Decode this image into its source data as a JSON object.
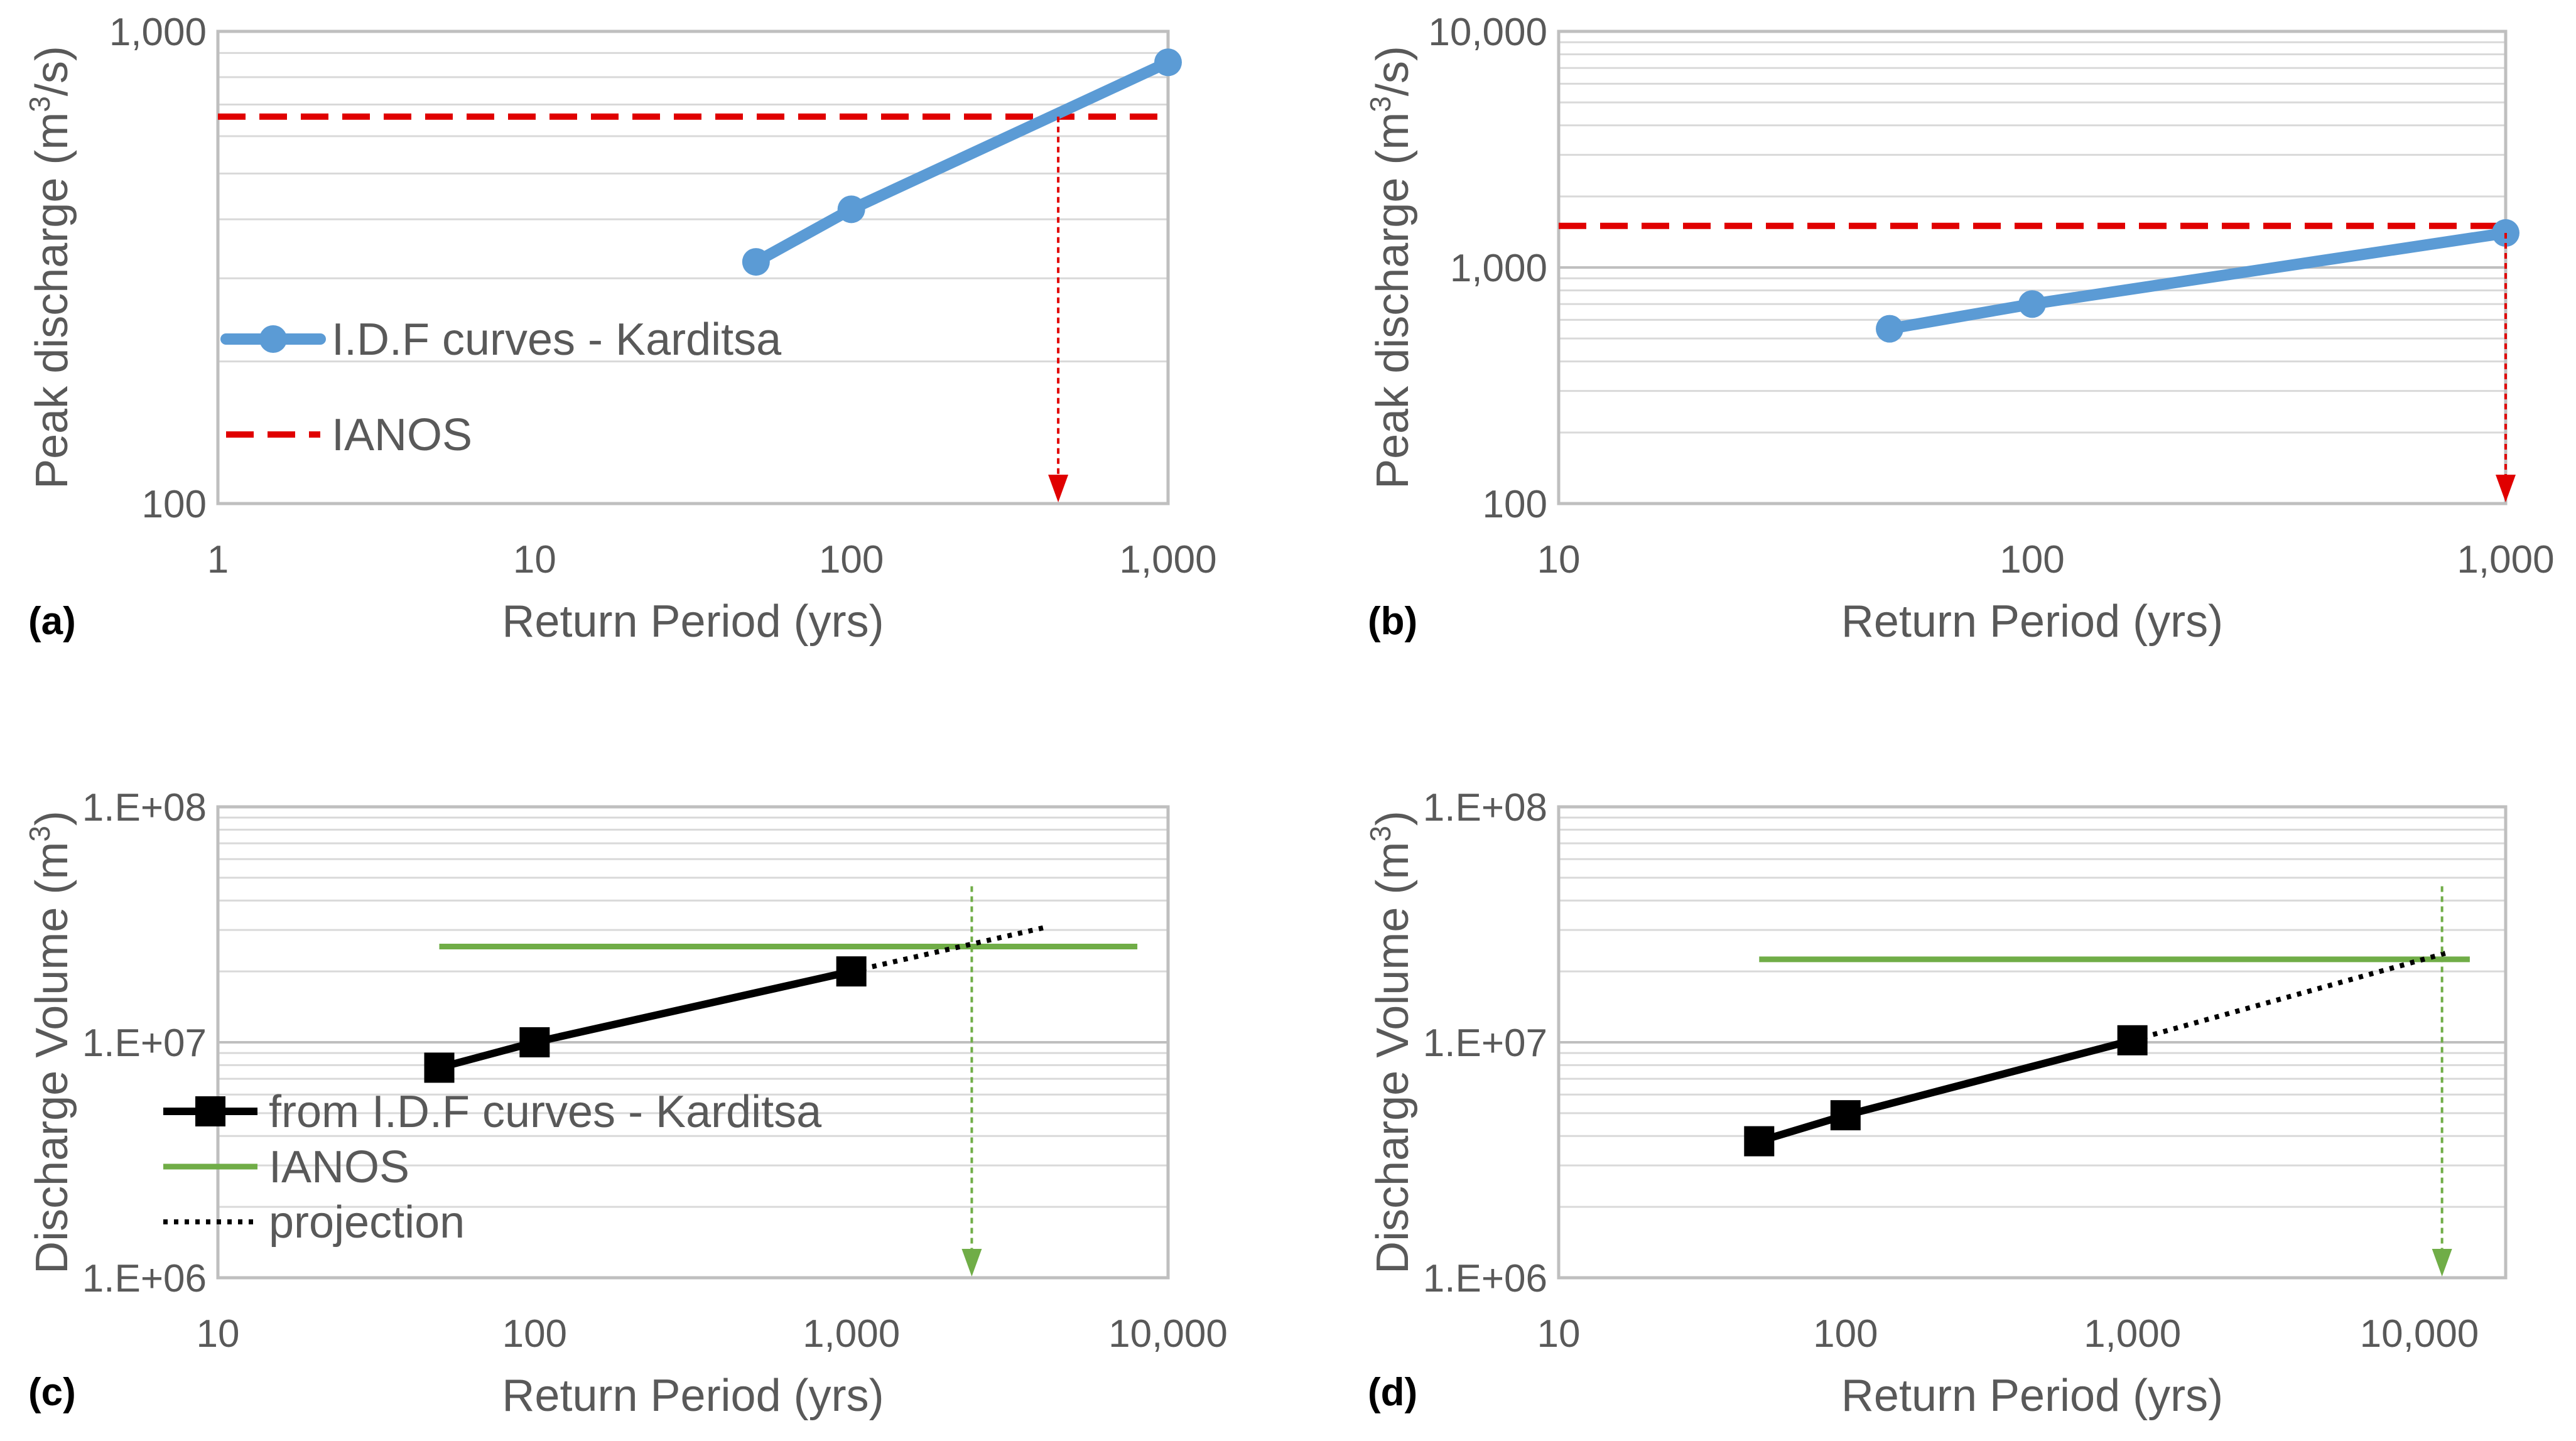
{
  "colors": {
    "idf_blue": "#5b9bd5",
    "ianos_red": "#e00000",
    "ianos_green": "#70ad47",
    "black": "#000000",
    "grid": "#d9d9d9",
    "axis": "#bfbfbf",
    "text": "#595959"
  },
  "chart_data": [
    {
      "id": "a",
      "type": "line",
      "panel_label": "(a)",
      "xlabel": "Return Period (yrs)",
      "ylabel_main": "Peak discharge (m",
      "ylabel_sup": "3",
      "ylabel_tail": "/s)",
      "xscale": "log",
      "yscale": "log",
      "xlim": [
        1,
        1000
      ],
      "ylim": [
        100,
        1000
      ],
      "x_ticks": [
        {
          "value": 1,
          "label": "1"
        },
        {
          "value": 10,
          "label": "10"
        },
        {
          "value": 100,
          "label": "100"
        },
        {
          "value": 1000,
          "label": "1,000"
        }
      ],
      "y_ticks": [
        {
          "value": 100,
          "label": "100"
        },
        {
          "value": 1000,
          "label": "1,000"
        }
      ],
      "legend_position": "left-middle",
      "series": [
        {
          "name": "I.D.F curves - Karditsa",
          "style": "line-marker-circle",
          "color": "#5b9bd5",
          "x": [
            50,
            100,
            1000
          ],
          "y": [
            325,
            420,
            860
          ]
        },
        {
          "name": "IANOS",
          "style": "dashed",
          "color": "#e00000",
          "x": [
            1,
            1000
          ],
          "y": [
            660,
            660
          ]
        }
      ],
      "annotation_arrow": {
        "x": 450,
        "y_from": 660,
        "y_to": 100,
        "color": "#e00000"
      }
    },
    {
      "id": "b",
      "type": "line",
      "panel_label": "(b)",
      "xlabel": "Return Period (yrs)",
      "ylabel_main": "Peak discharge (m",
      "ylabel_sup": "3",
      "ylabel_tail": "/s)",
      "xscale": "log",
      "yscale": "log",
      "xlim": [
        10,
        1000
      ],
      "ylim": [
        100,
        10000
      ],
      "x_ticks": [
        {
          "value": 10,
          "label": "10"
        },
        {
          "value": 100,
          "label": "100"
        },
        {
          "value": 1000,
          "label": "1,000"
        }
      ],
      "y_ticks": [
        {
          "value": 100,
          "label": "100"
        },
        {
          "value": 1000,
          "label": "1,000"
        },
        {
          "value": 10000,
          "label": "10,000"
        }
      ],
      "series": [
        {
          "name": "I.D.F curves - Karditsa",
          "style": "line-marker-circle",
          "color": "#5b9bd5",
          "x": [
            50,
            100,
            1000
          ],
          "y": [
            550,
            700,
            1400
          ]
        },
        {
          "name": "IANOS",
          "style": "dashed",
          "color": "#e00000",
          "x": [
            10,
            1000
          ],
          "y": [
            1500,
            1500
          ]
        }
      ],
      "annotation_arrow": {
        "x": 1000,
        "y_from": 1400,
        "y_to": 100,
        "color": "#e00000"
      }
    },
    {
      "id": "c",
      "type": "line",
      "panel_label": "(c)",
      "xlabel": "Return Period (yrs)",
      "ylabel_main": "Discharge Volume (m",
      "ylabel_sup": "3",
      "ylabel_tail": ")",
      "xscale": "log",
      "yscale": "log",
      "xlim": [
        10,
        10000
      ],
      "ylim": [
        1000000,
        100000000
      ],
      "x_ticks": [
        {
          "value": 10,
          "label": "10"
        },
        {
          "value": 100,
          "label": "100"
        },
        {
          "value": 1000,
          "label": "1,000"
        },
        {
          "value": 10000,
          "label": "10,000"
        }
      ],
      "y_ticks": [
        {
          "value": 1000000,
          "label": "1.E+06"
        },
        {
          "value": 10000000,
          "label": "1.E+07"
        },
        {
          "value": 100000000,
          "label": "1.E+08"
        }
      ],
      "legend_position": "bottom-left",
      "series": [
        {
          "name": "from I.D.F curves - Karditsa",
          "style": "line-marker-square",
          "color": "#000000",
          "x": [
            50,
            100,
            1000
          ],
          "y": [
            7800000,
            10000000,
            20000000
          ]
        },
        {
          "name": "IANOS",
          "style": "solid",
          "color": "#70ad47",
          "x": [
            50,
            8000
          ],
          "y": [
            25500000,
            25500000
          ]
        },
        {
          "name": "projection",
          "style": "dotted",
          "color": "#000000",
          "x": [
            1000,
            4200
          ],
          "y": [
            20000000,
            31000000
          ]
        }
      ],
      "annotation_arrow": {
        "x": 2400,
        "y_from": 46000000,
        "y_to": 1000000,
        "color": "#70ad47"
      }
    },
    {
      "id": "d",
      "type": "line",
      "panel_label": "(d)",
      "xlabel": "Return Period (yrs)",
      "ylabel_main": "Discharge Volume (m",
      "ylabel_sup": "3",
      "ylabel_tail": ")",
      "xscale": "log",
      "yscale": "log",
      "xlim": [
        10,
        20000
      ],
      "ylim": [
        1000000,
        100000000
      ],
      "x_ticks": [
        {
          "value": 10,
          "label": "10"
        },
        {
          "value": 100,
          "label": "100"
        },
        {
          "value": 1000,
          "label": "1,000"
        },
        {
          "value": 10000,
          "label": "10,000"
        }
      ],
      "y_ticks": [
        {
          "value": 1000000,
          "label": "1.E+06"
        },
        {
          "value": 10000000,
          "label": "1.E+07"
        },
        {
          "value": 100000000,
          "label": "1.E+08"
        }
      ],
      "series": [
        {
          "name": "from I.D.F curves - Karditsa",
          "style": "line-marker-square",
          "color": "#000000",
          "x": [
            50,
            100,
            1000
          ],
          "y": [
            3800000,
            4900000,
            10200000
          ]
        },
        {
          "name": "IANOS",
          "style": "solid",
          "color": "#70ad47",
          "x": [
            50,
            15000
          ],
          "y": [
            22500000,
            22500000
          ]
        },
        {
          "name": "projection",
          "style": "dotted",
          "color": "#000000",
          "x": [
            1000,
            12500
          ],
          "y": [
            10200000,
            24000000
          ]
        }
      ],
      "annotation_arrow": {
        "x": 12000,
        "y_from": 46000000,
        "y_to": 1000000,
        "color": "#70ad47"
      }
    }
  ]
}
